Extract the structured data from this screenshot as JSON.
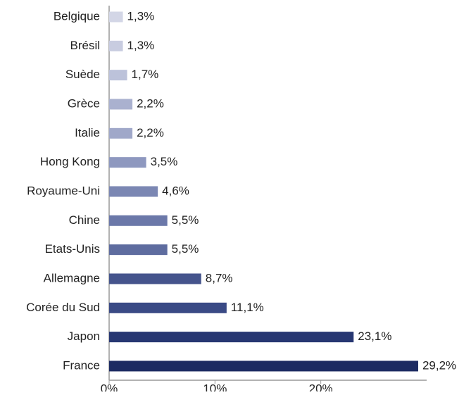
{
  "chart_data": {
    "type": "hbar",
    "categories": [
      "Belgique",
      "Brésil",
      "Suède",
      "Grèce",
      "Italie",
      "Hong Kong",
      "Royaume-Uni",
      "Chine",
      "Etats-Unis",
      "Allemagne",
      "Corée du Sud",
      "Japon",
      "France"
    ],
    "values": [
      1.3,
      1.3,
      1.7,
      2.2,
      2.2,
      3.5,
      4.6,
      5.5,
      5.5,
      8.7,
      11.1,
      23.1,
      29.2
    ],
    "value_labels": [
      "1,3%",
      "1,3%",
      "1,7%",
      "2,2%",
      "2,2%",
      "3,5%",
      "4,6%",
      "5,5%",
      "5,5%",
      "8,7%",
      "11,1%",
      "23,1%",
      "29,2%"
    ],
    "colors": [
      "#d3d6e6",
      "#c8cce0",
      "#bcc2da",
      "#aab1cf",
      "#a0a8c9",
      "#8e98bf",
      "#7b87b3",
      "#6b78a9",
      "#5e6c9f",
      "#45548c",
      "#3a4a85",
      "#273772",
      "#1d2b62"
    ],
    "xlim": [
      0,
      30
    ],
    "xticks": [
      {
        "value": 0,
        "label": "0%"
      },
      {
        "value": 10,
        "label": "10%"
      },
      {
        "value": 20,
        "label": "20%"
      }
    ]
  }
}
